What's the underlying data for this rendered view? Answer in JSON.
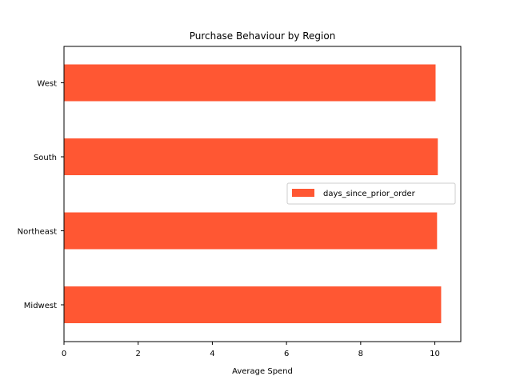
{
  "chart_data": {
    "type": "bar",
    "orientation": "horizontal",
    "title": "Purchase Behaviour by Region",
    "xlabel": "Average Spend",
    "ylabel": "",
    "categories": [
      "Midwest",
      "Northeast",
      "South",
      "West"
    ],
    "series": [
      {
        "name": "days_since_prior_order",
        "values": [
          10.17,
          10.06,
          10.08,
          10.02
        ],
        "color": "#ff5733"
      }
    ],
    "xlim": [
      0,
      10.7
    ],
    "xticks": [
      0,
      2,
      4,
      6,
      8,
      10
    ],
    "grid": false,
    "legend_position": "center-right"
  }
}
